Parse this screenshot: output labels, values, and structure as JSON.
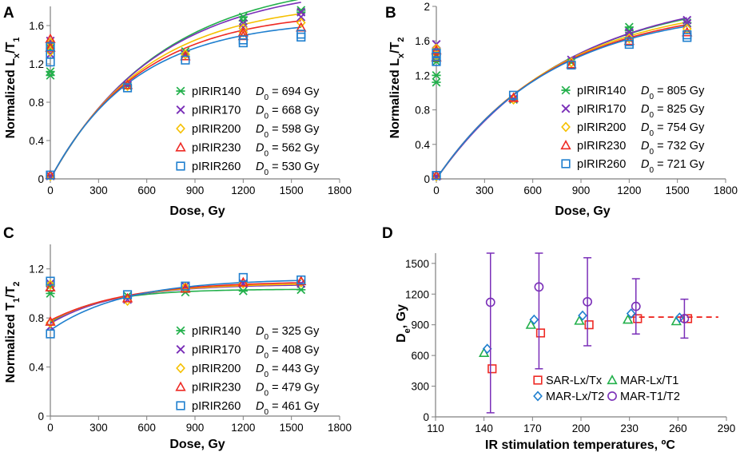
{
  "panels": [
    {
      "letter": "A",
      "type": "scatter",
      "xlabel": "Dose, Gy",
      "ylabel_main": "Normalized L",
      "ylabel_sub1": "x",
      "ylabel_mid": "/T",
      "ylabel_sub2": "1",
      "xlim": [
        0,
        1800
      ],
      "ylim": [
        0,
        1.8
      ],
      "xticks": [
        "0",
        "300",
        "600",
        "900",
        "1200",
        "1500",
        "1800"
      ],
      "xtick_values": [
        0,
        300,
        600,
        900,
        1200,
        1500,
        1800
      ],
      "yticks": [
        "0",
        "0.4",
        "0.8",
        "1.2",
        "1.6"
      ],
      "ytick_values": [
        0,
        0.4,
        0.8,
        1.2,
        1.6
      ],
      "curve_model": "saturating_exponential",
      "series": [
        {
          "name": "pIRIR140",
          "d0_label": "D",
          "d0_sub": "0",
          "d0_value": " = 694 Gy",
          "D0": 694,
          "Imax": 2.1,
          "color": "#22b04b",
          "marker": "asterisk",
          "natural": [
            1.08,
            1.12,
            1.36,
            1.4
          ],
          "points": [
            [
              0,
              0.03
            ],
            [
              480,
              0.97
            ],
            [
              840,
              1.33
            ],
            [
              1200,
              1.65
            ],
            [
              1200,
              1.69
            ],
            [
              1560,
              1.74
            ],
            [
              1560,
              1.76
            ]
          ]
        },
        {
          "name": "pIRIR170",
          "d0_label": "D",
          "d0_sub": "0",
          "d0_value": " = 668 Gy",
          "D0": 668,
          "Imax": 2.04,
          "color": "#7a2fb8",
          "marker": "x",
          "natural": [
            1.3,
            1.38,
            1.44
          ],
          "points": [
            [
              0,
              0.03
            ],
            [
              480,
              0.98
            ],
            [
              840,
              1.3
            ],
            [
              1200,
              1.58
            ],
            [
              1200,
              1.62
            ],
            [
              1560,
              1.69
            ],
            [
              1560,
              1.74
            ]
          ]
        },
        {
          "name": "pIRIR200",
          "d0_label": "D",
          "d0_sub": "0",
          "d0_value": " = 598 Gy",
          "D0": 598,
          "Imax": 1.86,
          "color": "#f5c000",
          "marker": "diamond",
          "natural": [
            1.33,
            1.42
          ],
          "points": [
            [
              0,
              0.03
            ],
            [
              480,
              0.97
            ],
            [
              840,
              1.3
            ],
            [
              1200,
              1.53
            ],
            [
              1200,
              1.57
            ],
            [
              1560,
              1.63
            ]
          ]
        },
        {
          "name": "pIRIR230",
          "d0_label": "D",
          "d0_sub": "0",
          "d0_value": " = 562 Gy",
          "D0": 562,
          "Imax": 1.76,
          "color": "#ee2a24",
          "marker": "triangle",
          "natural": [
            1.37,
            1.46
          ],
          "points": [
            [
              0,
              0.04
            ],
            [
              480,
              0.98
            ],
            [
              840,
              1.28
            ],
            [
              1200,
              1.49
            ],
            [
              1200,
              1.53
            ],
            [
              1560,
              1.58
            ]
          ]
        },
        {
          "name": "pIRIR260",
          "d0_label": "D",
          "d0_sub": "0",
          "d0_value": " = 530 Gy",
          "D0": 530,
          "Imax": 1.67,
          "color": "#1f7fcf",
          "marker": "square",
          "natural": [
            1.22,
            1.3,
            1.38
          ],
          "points": [
            [
              0,
              0.04
            ],
            [
              480,
              0.95
            ],
            [
              840,
              1.24
            ],
            [
              1200,
              1.42
            ],
            [
              1200,
              1.45
            ],
            [
              1560,
              1.48
            ],
            [
              1560,
              1.51
            ]
          ]
        }
      ]
    },
    {
      "letter": "B",
      "type": "scatter",
      "xlabel": "Dose, Gy",
      "ylabel_main": "Normalized L",
      "ylabel_sub1": "x",
      "ylabel_mid": "/T",
      "ylabel_sub2": "2",
      "xlim": [
        0,
        1800
      ],
      "ylim": [
        0,
        2.0
      ],
      "xticks": [
        "0",
        "300",
        "600",
        "900",
        "1200",
        "1500",
        "1800"
      ],
      "xtick_values": [
        0,
        300,
        600,
        900,
        1200,
        1500,
        1800
      ],
      "yticks": [
        "0",
        "0.4",
        "0.8",
        "1.2",
        "1.6",
        "2"
      ],
      "ytick_values": [
        0,
        0.4,
        0.8,
        1.2,
        1.6,
        2.0
      ],
      "curve_model": "saturating_exponential",
      "series": [
        {
          "name": "pIRIR140",
          "d0_label": "D",
          "d0_sub": "0",
          "d0_value": " = 805 Gy",
          "D0": 805,
          "Imax": 2.17,
          "color": "#22b04b",
          "marker": "asterisk",
          "natural": [
            1.12,
            1.2,
            1.36,
            1.44
          ],
          "points": [
            [
              0,
              0.03
            ],
            [
              480,
              0.92
            ],
            [
              840,
              1.35
            ],
            [
              1200,
              1.72
            ],
            [
              1200,
              1.76
            ],
            [
              1560,
              1.81
            ]
          ]
        },
        {
          "name": "pIRIR170",
          "d0_label": "D",
          "d0_sub": "0",
          "d0_value": " = 825 Gy",
          "D0": 825,
          "Imax": 2.2,
          "color": "#7a2fb8",
          "marker": "x",
          "natural": [
            1.48,
            1.56
          ],
          "points": [
            [
              0,
              0.03
            ],
            [
              480,
              0.93
            ],
            [
              840,
              1.38
            ],
            [
              1200,
              1.66
            ],
            [
              1200,
              1.7
            ],
            [
              1560,
              1.8
            ],
            [
              1560,
              1.84
            ]
          ]
        },
        {
          "name": "pIRIR200",
          "d0_label": "D",
          "d0_sub": "0",
          "d0_value": " = 754 Gy",
          "D0": 754,
          "Imax": 2.08,
          "color": "#f5c000",
          "marker": "diamond",
          "natural": [
            1.43,
            1.51
          ],
          "points": [
            [
              0,
              0.03
            ],
            [
              480,
              0.92
            ],
            [
              840,
              1.35
            ],
            [
              1200,
              1.63
            ],
            [
              1560,
              1.74
            ]
          ]
        },
        {
          "name": "pIRIR230",
          "d0_label": "D",
          "d0_sub": "0",
          "d0_value": " = 732 Gy",
          "D0": 732,
          "Imax": 2.03,
          "color": "#ee2a24",
          "marker": "triangle",
          "natural": [
            1.41,
            1.49
          ],
          "points": [
            [
              0,
              0.04
            ],
            [
              480,
              0.94
            ],
            [
              840,
              1.33
            ],
            [
              1200,
              1.6
            ],
            [
              1560,
              1.7
            ]
          ]
        },
        {
          "name": "pIRIR260",
          "d0_label": "D",
          "d0_sub": "0",
          "d0_value": " = 721 Gy",
          "D0": 721,
          "Imax": 2.0,
          "color": "#1f7fcf",
          "marker": "square",
          "natural": [
            1.36,
            1.42,
            1.46
          ],
          "points": [
            [
              0,
              0.04
            ],
            [
              480,
              0.97
            ],
            [
              840,
              1.32
            ],
            [
              1200,
              1.56
            ],
            [
              1200,
              1.59
            ],
            [
              1560,
              1.64
            ],
            [
              1560,
              1.67
            ]
          ]
        }
      ]
    },
    {
      "letter": "C",
      "type": "scatter",
      "xlabel": "Dose, Gy",
      "ylabel_main": "Normalized T",
      "ylabel_sub1": "1",
      "ylabel_mid": "/T",
      "ylabel_sub2": "2",
      "xlim": [
        0,
        1800
      ],
      "ylim": [
        0,
        1.4
      ],
      "xticks": [
        "0",
        "300",
        "600",
        "900",
        "1200",
        "1500",
        "1800"
      ],
      "xtick_values": [
        0,
        300,
        600,
        900,
        1200,
        1500,
        1800
      ],
      "yticks": [
        "0",
        "0.4",
        "0.8",
        "1.2"
      ],
      "ytick_values": [
        0,
        0.4,
        0.8,
        1.2
      ],
      "curve_model": "offset_exponential",
      "series": [
        {
          "name": "pIRIR140",
          "d0_label": "D",
          "d0_sub": "0",
          "d0_value": " = 325 Gy",
          "D0": 325,
          "A": 1.035,
          "B": 0.27,
          "color": "#22b04b",
          "marker": "asterisk",
          "points": [
            [
              0,
              1.0
            ],
            [
              0,
              1.06
            ],
            [
              480,
              0.98
            ],
            [
              840,
              1.01
            ],
            [
              1200,
              1.02
            ],
            [
              1560,
              1.03
            ]
          ]
        },
        {
          "name": "pIRIR170",
          "d0_label": "D",
          "d0_sub": "0",
          "d0_value": " = 408 Gy",
          "D0": 408,
          "A": 1.075,
          "B": 0.32,
          "color": "#7a2fb8",
          "marker": "x",
          "points": [
            [
              0,
              0.73
            ],
            [
              0,
              1.08
            ],
            [
              480,
              0.95
            ],
            [
              840,
              1.06
            ],
            [
              1200,
              1.08
            ],
            [
              1560,
              1.08
            ]
          ]
        },
        {
          "name": "pIRIR200",
          "d0_label": "D",
          "d0_sub": "0",
          "d0_value": " = 443 Gy",
          "D0": 443,
          "A": 1.085,
          "B": 0.31,
          "color": "#f5c000",
          "marker": "diamond",
          "points": [
            [
              0,
              0.76
            ],
            [
              0,
              1.07
            ],
            [
              480,
              0.94
            ],
            [
              840,
              1.05
            ],
            [
              1200,
              1.08
            ],
            [
              1560,
              1.09
            ]
          ]
        },
        {
          "name": "pIRIR230",
          "d0_label": "D",
          "d0_sub": "0",
          "d0_value": " = 479 Gy",
          "D0": 479,
          "A": 1.1,
          "B": 0.32,
          "color": "#ee2a24",
          "marker": "triangle",
          "points": [
            [
              0,
              0.77
            ],
            [
              0,
              1.05
            ],
            [
              480,
              0.96
            ],
            [
              840,
              1.04
            ],
            [
              1200,
              1.09
            ],
            [
              1560,
              1.1
            ]
          ]
        },
        {
          "name": "pIRIR260",
          "d0_label": "D",
          "d0_sub": "0",
          "d0_value": " = 461 Gy",
          "D0": 461,
          "A": 1.12,
          "B": 0.42,
          "color": "#1f7fcf",
          "marker": "square",
          "points": [
            [
              0,
              0.67
            ],
            [
              0,
              1.1
            ],
            [
              480,
              0.99
            ],
            [
              840,
              1.06
            ],
            [
              1200,
              1.13
            ],
            [
              1560,
              1.11
            ]
          ]
        }
      ]
    },
    {
      "letter": "D",
      "type": "scatter",
      "xlabel": "IR stimulation temperatures, ºC",
      "ylabel_main": "D",
      "ylabel_sub1": "e",
      "ylabel_mid": ", Gy",
      "ylabel_sub2": "",
      "xlim": [
        110,
        290
      ],
      "ylim": [
        0,
        1600
      ],
      "xticks": [
        "110",
        "140",
        "170",
        "200",
        "230",
        "260",
        "290"
      ],
      "xtick_values": [
        110,
        140,
        170,
        200,
        230,
        260,
        290
      ],
      "yticks": [
        "0",
        "300",
        "600",
        "900",
        "1200",
        "1500"
      ],
      "ytick_values": [
        0,
        300,
        600,
        900,
        1200,
        1500
      ],
      "reference_line": {
        "y": 975,
        "x_from": 230,
        "x_to": 285,
        "color": "#ee2a24"
      },
      "series": [
        {
          "name": "SAR-Lx/Tx",
          "color": "#ee2a24",
          "marker": "square",
          "points": [
            [
              145,
              470,
              0
            ],
            [
              175,
              820,
              0
            ],
            [
              205,
              900,
              0
            ],
            [
              235,
              960,
              0
            ],
            [
              266,
              960,
              0
            ]
          ]
        },
        {
          "name": "MAR-Lx/T1",
          "color": "#22b04b",
          "marker": "triangle",
          "points": [
            [
              140,
              625,
              0
            ],
            [
              169,
              900,
              0
            ],
            [
              199,
              940,
              0
            ],
            [
              229,
              950,
              0
            ],
            [
              259,
              935,
              0
            ]
          ]
        },
        {
          "name": "MAR-Lx/T2",
          "color": "#1f7fcf",
          "marker": "diamond",
          "points": [
            [
              142,
              665,
              0
            ],
            [
              171,
              950,
              0
            ],
            [
              201,
              990,
              0
            ],
            [
              231,
              1010,
              0
            ],
            [
              261,
              970,
              0
            ]
          ]
        },
        {
          "name": "MAR-T1/T2",
          "color": "#7a2fb8",
          "marker": "circle",
          "points": [
            [
              144,
              1120,
              1080
            ],
            [
              174,
              1270,
              800
            ],
            [
              204,
              1125,
              430
            ],
            [
              234,
              1080,
              270
            ],
            [
              264,
              960,
              190
            ]
          ]
        }
      ],
      "legend_order": [
        "SAR-Lx/Tx",
        "MAR-Lx/T1",
        "MAR-Lx/T2",
        "MAR-T1/T2"
      ]
    }
  ]
}
